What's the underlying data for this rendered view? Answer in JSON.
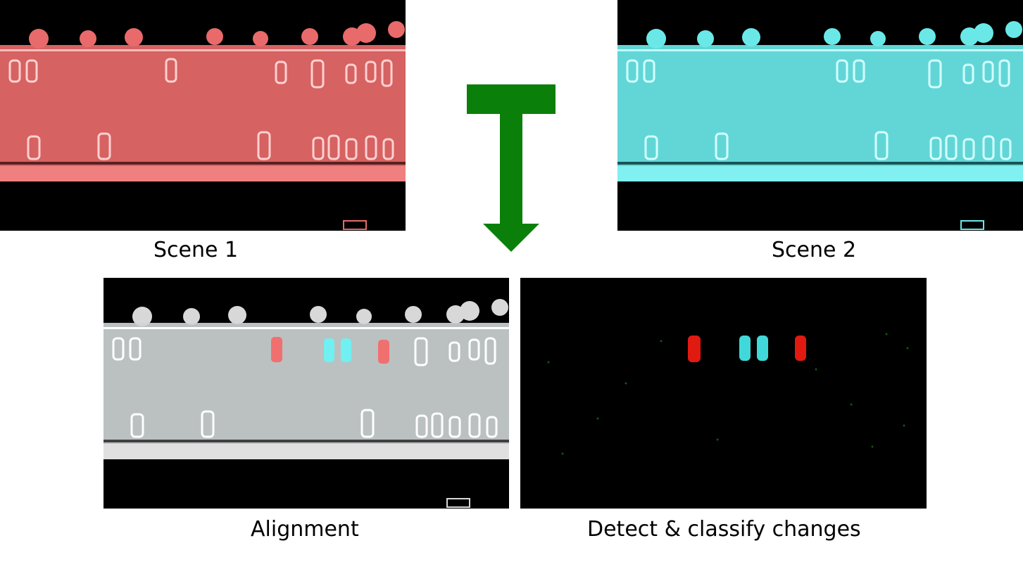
{
  "panels": {
    "scene1": {
      "caption": "Scene 1",
      "tint": "#f07070",
      "cars": [
        "top-left",
        "top-mid",
        "top-right",
        "bottom-row"
      ]
    },
    "scene2": {
      "caption": "Scene 2",
      "tint": "#70f0f0"
    },
    "alignment": {
      "caption": "Alignment",
      "base_tint": "#dcdcdc",
      "removed_color": "#f07070",
      "added_color": "#70f0f0"
    },
    "changes": {
      "caption": "Detect & classify changes",
      "removed_color": "#e01a10",
      "added_color": "#40d8d8",
      "noise_color": "#1a7a1a"
    }
  },
  "arrow": {
    "color": "#0a800a",
    "direction": "down"
  }
}
